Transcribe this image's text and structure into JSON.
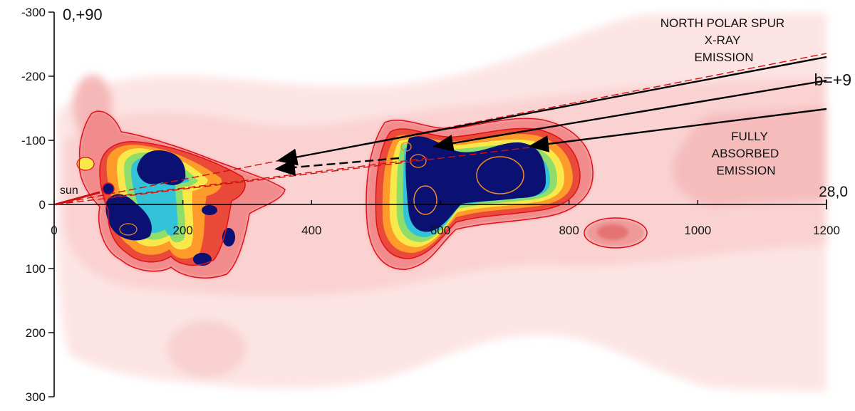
{
  "chart_data": {
    "type": "heatmap",
    "title": "",
    "xlabel": "",
    "ylabel": "",
    "xlim": [
      0,
      1200
    ],
    "ylim": [
      -300,
      300
    ],
    "x_ticks": [
      0,
      200,
      400,
      600,
      800,
      1000,
      1200
    ],
    "y_ticks": [
      -300,
      -200,
      -100,
      0,
      100,
      200,
      300
    ],
    "x_tick_labels": [
      "0",
      "200",
      "400",
      "600",
      "800",
      "1000",
      "1200"
    ],
    "y_tick_labels": [
      "-300",
      "-200",
      "-100",
      "0",
      "100",
      "200",
      "300"
    ],
    "corner_labels": {
      "top_left": "0,+90",
      "right_axis": "28,0"
    },
    "annotations": {
      "sun": "sun",
      "nps_line1": "NORTH POLAR SPUR",
      "nps_line2": "X-RAY",
      "nps_line3": "EMISSION",
      "b_label": "b=+9",
      "absorbed_line1": "FULLY",
      "absorbed_line2": "ABSORBED",
      "absorbed_line3": "EMISSION"
    },
    "sun_position": {
      "x": 85,
      "y": -24
    },
    "colors": {
      "bg_light": "#fde9e9",
      "pink": "#f7c8c8",
      "salmon": "#ef9a9a",
      "red": "#e53935",
      "orange": "#ff9800",
      "yellow": "#ffeb3b",
      "green": "#a5e36b",
      "cyan": "#26c6da",
      "blue": "#1565c0",
      "navy": "#0a1172",
      "contour_red": "#e0101a",
      "contour_orange": "#f08a28",
      "arrow": "#000000",
      "dashed_red": "#d01010"
    },
    "blobs": [
      {
        "name": "left-cloud",
        "x": 195,
        "y": -10,
        "peak": "navy"
      },
      {
        "name": "lower-left-cloud",
        "x": 260,
        "y": 55,
        "peak": "navy"
      },
      {
        "name": "central-cloud",
        "x": 650,
        "y": -60,
        "peak": "navy"
      },
      {
        "name": "right-lobe",
        "x": 865,
        "y": 45,
        "peak": "salmon"
      }
    ],
    "arrows": [
      {
        "from": [
          1160,
          -215
        ],
        "to": [
          350,
          -70
        ]
      },
      {
        "from": [
          1160,
          -190
        ],
        "to": [
          600,
          -90
        ]
      },
      {
        "from": [
          1160,
          -148
        ],
        "to": [
          740,
          -92
        ]
      }
    ]
  }
}
